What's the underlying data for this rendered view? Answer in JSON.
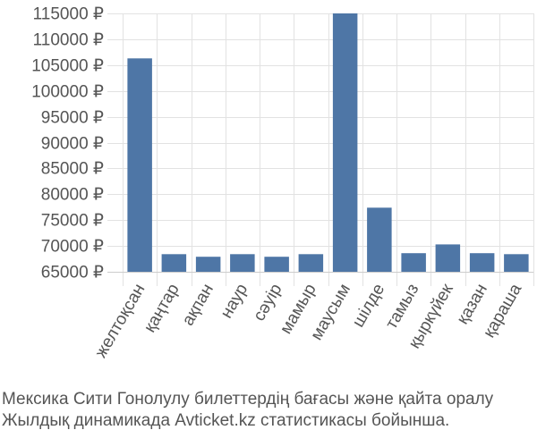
{
  "chart_data": {
    "type": "bar",
    "categories": [
      "желтоқсан",
      "қаңтар",
      "ақпан",
      "наур",
      "сәуір",
      "мамыр",
      "маусым",
      "шілде",
      "тамыз",
      "қыркүйек",
      "қазан",
      "қараша"
    ],
    "values": [
      106300,
      68400,
      67900,
      68400,
      67900,
      68400,
      115000,
      77400,
      68600,
      70300,
      68600,
      68400
    ],
    "ylim": [
      65000,
      115000
    ],
    "yticks": [
      65000,
      70000,
      75000,
      80000,
      85000,
      90000,
      95000,
      100000,
      105000,
      110000,
      115000
    ],
    "tick_suffix": " ₽",
    "bar_color": "#4e76a6",
    "grid": true,
    "legend": "none"
  },
  "caption": {
    "line1": "Мексика Сити Гонолулу билеттердің бағасы және қайта оралу",
    "line2": "Жылдық динамикада Avticket.kz статистикасы бойынша."
  }
}
